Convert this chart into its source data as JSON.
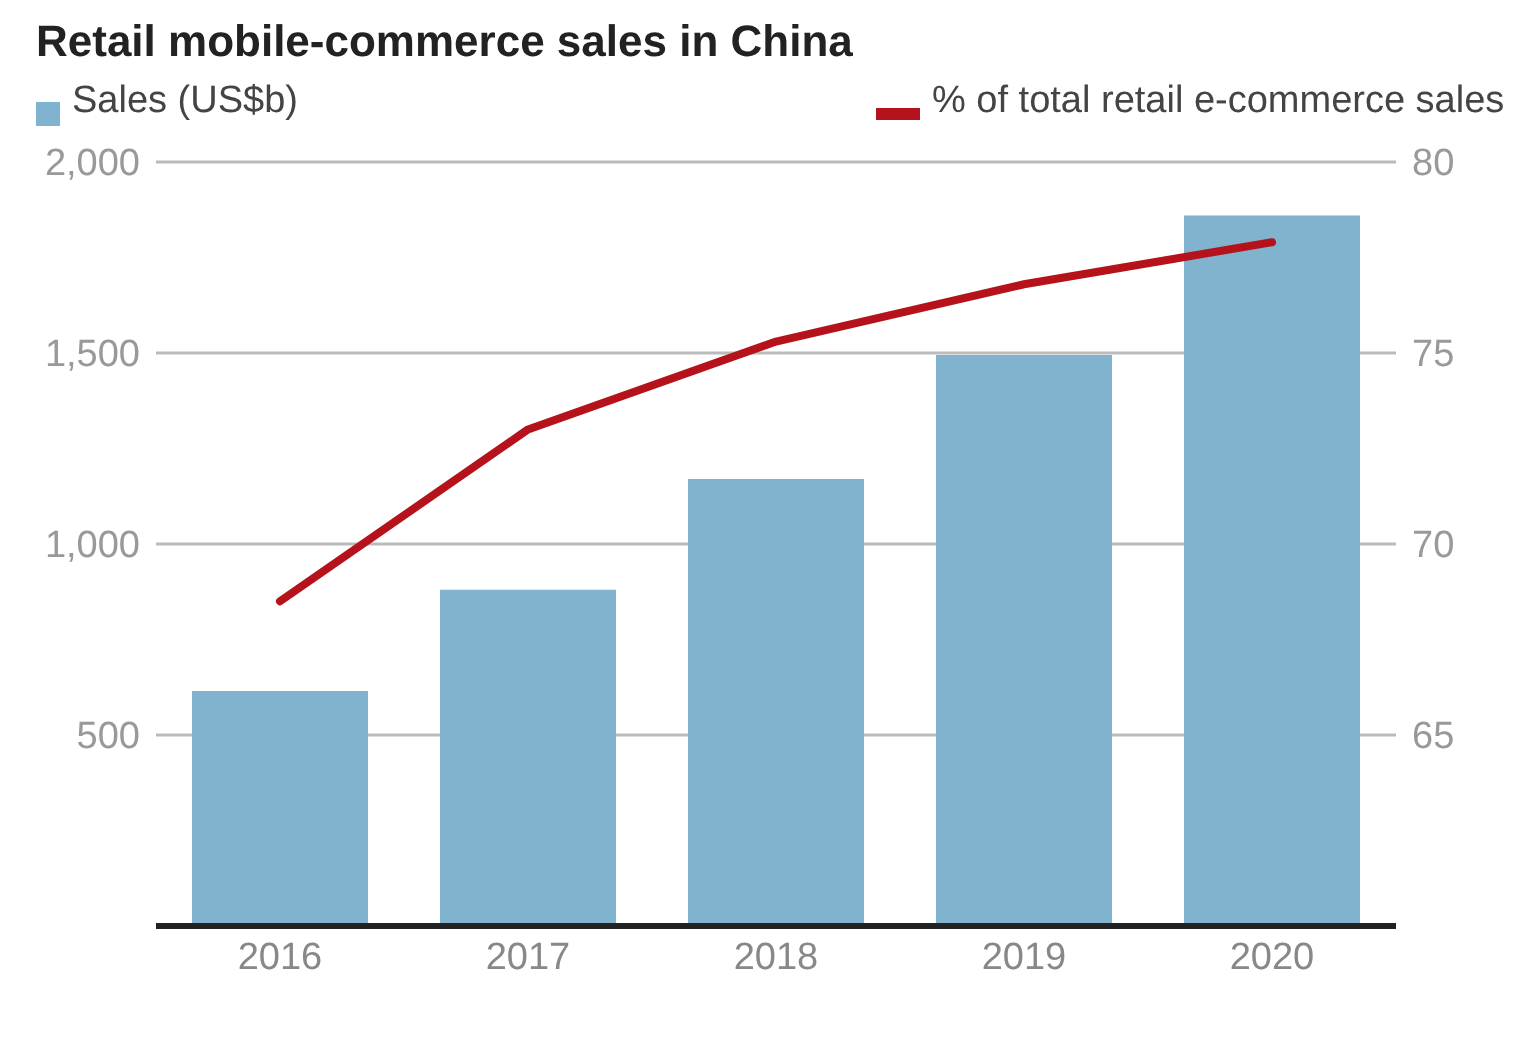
{
  "chart_data": {
    "type": "bar",
    "title": "Retail mobile-commerce sales in China",
    "categories": [
      "2016",
      "2017",
      "2018",
      "2019",
      "2020"
    ],
    "series": [
      {
        "name": "Sales (US$b)",
        "color": "#7fb3ce",
        "values": [
          615,
          880,
          1170,
          1495,
          1860
        ]
      },
      {
        "name": "% of total retail e-commerce sales",
        "type": "line",
        "axis": "y2",
        "color": "#b5121b",
        "values": [
          68.5,
          73,
          75.3,
          76.8,
          77.9
        ]
      }
    ],
    "ylim": [
      0,
      2000
    ],
    "yticks": [
      {
        "value": 500,
        "label": "500"
      },
      {
        "value": 1000,
        "label": "1,000"
      },
      {
        "value": 1500,
        "label": "1,500"
      },
      {
        "value": 2000,
        "label": "2,000"
      }
    ],
    "y2lim": [
      60,
      80
    ],
    "y2ticks": [
      65,
      70,
      75,
      80
    ],
    "grid": "y",
    "legend": "top",
    "marker": "none",
    "line_style": "solid"
  }
}
